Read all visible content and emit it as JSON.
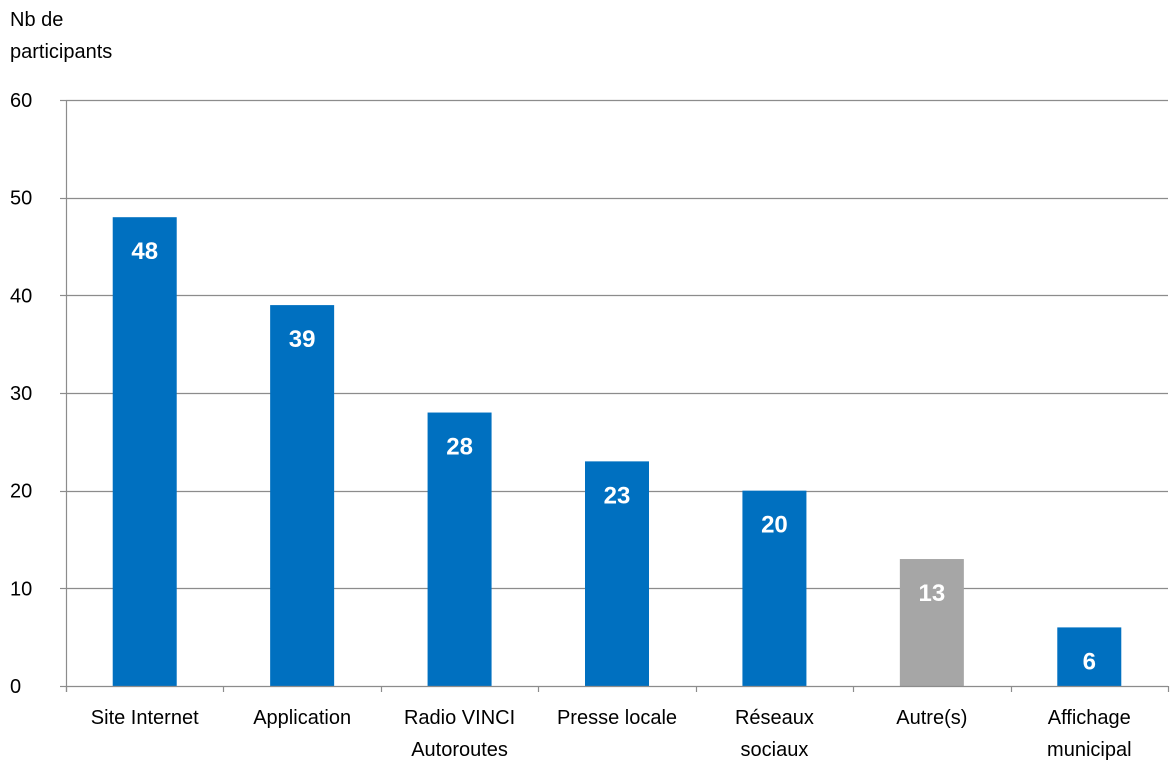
{
  "chart_data": {
    "type": "bar",
    "ylabel_lines": [
      "Nb de",
      "participants"
    ],
    "xlabel": "",
    "ylim": [
      0,
      60
    ],
    "yticks": [
      0,
      10,
      20,
      30,
      40,
      50,
      60
    ],
    "grid": true,
    "categories": [
      [
        "Site Internet"
      ],
      [
        "Application"
      ],
      [
        "Radio VINCI",
        "Autoroutes"
      ],
      [
        "Presse locale"
      ],
      [
        "Réseaux",
        "sociaux"
      ],
      [
        "Autre(s)"
      ],
      [
        "Affichage",
        "municipal"
      ]
    ],
    "values": [
      48,
      39,
      28,
      23,
      20,
      13,
      6
    ],
    "bar_colors": [
      "#0070C0",
      "#0070C0",
      "#0070C0",
      "#0070C0",
      "#0070C0",
      "#A6A6A6",
      "#0070C0"
    ],
    "data_labels": [
      "48",
      "39",
      "28",
      "23",
      "20",
      "13",
      "6"
    ]
  },
  "colors": {
    "primary": "#0070C0",
    "other": "#A6A6A6",
    "grid": "#8C8C8C",
    "label": "#FFFFFF"
  }
}
